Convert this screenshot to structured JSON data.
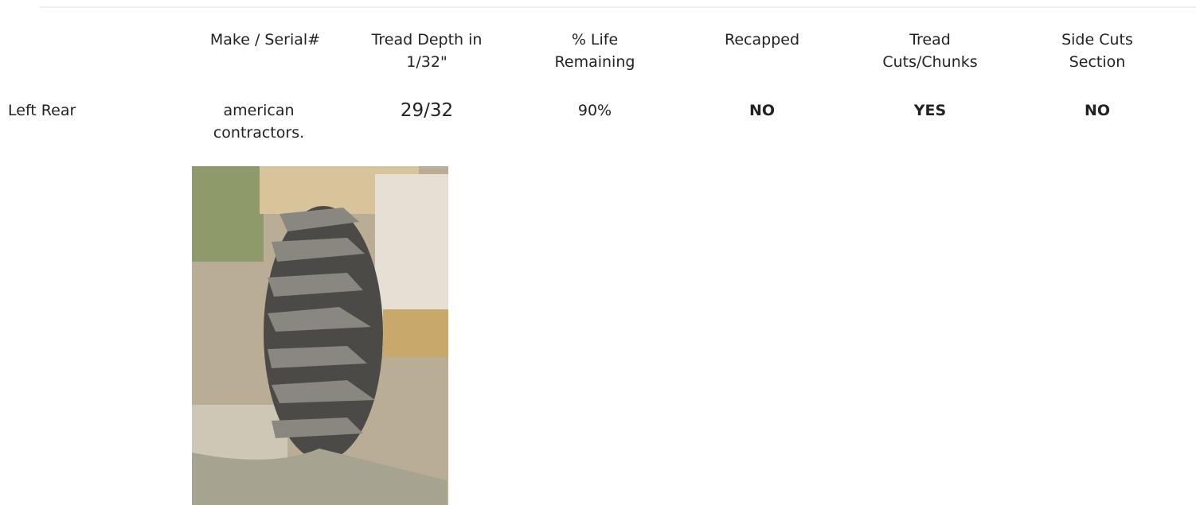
{
  "table": {
    "headers": [
      "Make / Serial#",
      "Tread Depth in 1/32\"",
      "% Life Remaining",
      "Recapped",
      "Tread Cuts/Chunks",
      "Side Cuts Section"
    ],
    "rows": [
      [
        "Left Rear",
        "american contractors.",
        "29/32",
        "90%",
        "NO",
        "YES",
        "NO"
      ]
    ]
  }
}
